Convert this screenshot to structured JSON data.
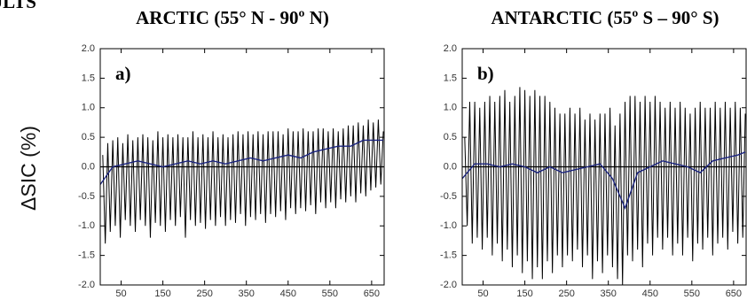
{
  "heading": "ULTS",
  "chart_data": [
    {
      "type": "line",
      "title": "ARCTIC (55° N - 90º N)",
      "panel_label": "a)",
      "ylabel": "ΔSIC (%)",
      "xlim": [
        0,
        680
      ],
      "ylim": [
        -2.0,
        2.0
      ],
      "xticks": [
        50,
        150,
        250,
        350,
        450,
        550,
        650
      ],
      "yticks": [
        {
          "value": 2.0,
          "label": "2.0"
        },
        1.5,
        {
          "value": 1.0,
          "label": "1.0"
        },
        0.5,
        {
          "value": 0.0,
          "label": "0.0"
        },
        -0.5,
        {
          "value": -1.0,
          "label": "-1.0"
        },
        -1.5,
        {
          "value": -2.0,
          "label": "-2.0"
        }
      ],
      "zero_line": true,
      "series": [
        {
          "color": "#000000",
          "x": [
            6,
            12,
            18,
            24,
            30,
            36,
            42,
            48,
            54,
            60,
            66,
            72,
            78,
            84,
            90,
            96,
            102,
            108,
            114,
            120,
            126,
            132,
            138,
            144,
            150,
            156,
            162,
            168,
            174,
            180,
            186,
            192,
            198,
            204,
            210,
            216,
            222,
            228,
            234,
            240,
            246,
            252,
            258,
            264,
            270,
            276,
            282,
            288,
            294,
            300,
            306,
            312,
            318,
            324,
            330,
            336,
            342,
            348,
            354,
            360,
            366,
            372,
            378,
            384,
            390,
            396,
            402,
            408,
            414,
            420,
            426,
            432,
            438,
            444,
            450,
            456,
            462,
            468,
            474,
            480,
            486,
            492,
            498,
            504,
            510,
            516,
            522,
            528,
            534,
            540,
            546,
            552,
            558,
            564,
            570,
            576,
            582,
            588,
            594,
            600,
            606,
            612,
            618,
            624,
            630,
            636,
            642,
            648,
            654,
            660,
            666,
            672,
            678
          ],
          "values": [
            0.2,
            -1.3,
            0.4,
            -1.1,
            0.45,
            -1.0,
            0.5,
            -1.2,
            0.4,
            -0.9,
            0.55,
            -1.0,
            0.45,
            -1.1,
            0.5,
            -0.9,
            0.55,
            -1.0,
            0.5,
            -1.2,
            0.45,
            -0.95,
            0.6,
            -1.0,
            0.5,
            -1.1,
            0.55,
            -0.9,
            0.5,
            -1.0,
            0.55,
            -0.85,
            0.5,
            -1.2,
            0.5,
            -0.9,
            0.6,
            -1.0,
            0.5,
            -0.95,
            0.55,
            -1.05,
            0.5,
            -0.9,
            0.6,
            -1.0,
            0.5,
            -0.85,
            0.55,
            -1.0,
            0.5,
            -0.9,
            0.55,
            -0.95,
            0.6,
            -0.8,
            0.55,
            -1.0,
            0.6,
            -0.85,
            0.55,
            -0.9,
            0.6,
            -0.8,
            0.55,
            -0.95,
            0.6,
            -0.8,
            0.6,
            -0.85,
            0.6,
            -0.75,
            0.55,
            -0.9,
            0.65,
            -0.7,
            0.6,
            -0.8,
            0.6,
            -0.7,
            0.65,
            -0.75,
            0.6,
            -0.65,
            0.6,
            -0.8,
            0.65,
            -0.6,
            0.65,
            -0.7,
            0.6,
            -0.6,
            0.65,
            -0.7,
            0.6,
            -0.55,
            0.65,
            -0.6,
            0.7,
            -0.5,
            0.7,
            -0.6,
            0.75,
            -0.45,
            0.7,
            -0.5,
            0.8,
            -0.4,
            0.75,
            -0.35,
            0.8,
            -0.3,
            0.6
          ]
        },
        {
          "color": "#1a237e",
          "x": [
            0,
            30,
            60,
            90,
            120,
            150,
            180,
            210,
            240,
            270,
            300,
            330,
            360,
            390,
            420,
            450,
            480,
            510,
            540,
            570,
            600,
            630,
            660,
            678
          ],
          "values": [
            -0.3,
            0.0,
            0.05,
            0.1,
            0.05,
            0.0,
            0.05,
            0.1,
            0.05,
            0.1,
            0.05,
            0.1,
            0.15,
            0.1,
            0.15,
            0.2,
            0.15,
            0.25,
            0.3,
            0.35,
            0.35,
            0.45,
            0.45,
            0.45
          ]
        }
      ]
    },
    {
      "type": "line",
      "title": "ANTARCTIC (55º S – 90° S)",
      "panel_label": "b)",
      "xlim": [
        0,
        680
      ],
      "ylim": [
        -2.0,
        2.0
      ],
      "xticks": [
        50,
        150,
        250,
        350,
        450,
        550,
        650
      ],
      "yticks": [
        {
          "value": 2.0,
          "label": "2.0"
        },
        1.5,
        {
          "value": 1.0,
          "label": "1.0"
        },
        0.5,
        {
          "value": 0.0,
          "label": "0.0"
        },
        -0.5,
        {
          "value": -1.0,
          "label": "-1.0"
        },
        -1.5,
        {
          "value": -2.0,
          "label": "-2.0"
        }
      ],
      "zero_line": true,
      "series": [
        {
          "color": "#000000",
          "x": [
            6,
            12,
            18,
            24,
            30,
            36,
            42,
            48,
            54,
            60,
            66,
            72,
            78,
            84,
            90,
            96,
            102,
            108,
            114,
            120,
            126,
            132,
            138,
            144,
            150,
            156,
            162,
            168,
            174,
            180,
            186,
            192,
            198,
            204,
            210,
            216,
            222,
            228,
            234,
            240,
            246,
            252,
            258,
            264,
            270,
            276,
            282,
            288,
            294,
            300,
            306,
            312,
            318,
            324,
            330,
            336,
            342,
            348,
            354,
            360,
            366,
            372,
            378,
            384,
            390,
            396,
            402,
            408,
            414,
            420,
            426,
            432,
            438,
            444,
            450,
            456,
            462,
            468,
            474,
            480,
            486,
            492,
            498,
            504,
            510,
            516,
            522,
            528,
            534,
            540,
            546,
            552,
            558,
            564,
            570,
            576,
            582,
            588,
            594,
            600,
            606,
            612,
            618,
            624,
            630,
            636,
            642,
            648,
            654,
            660,
            666,
            672,
            678
          ],
          "values": [
            0.5,
            -1.0,
            1.1,
            -1.3,
            1.1,
            -1.2,
            1.0,
            -1.4,
            1.1,
            -1.2,
            1.2,
            -1.5,
            1.1,
            -1.3,
            1.2,
            -1.6,
            1.3,
            -1.4,
            1.1,
            -1.7,
            1.2,
            -1.5,
            1.35,
            -1.8,
            1.3,
            -1.6,
            1.2,
            -1.9,
            1.3,
            -1.7,
            1.2,
            -1.9,
            1.2,
            -1.6,
            1.1,
            -1.8,
            1.0,
            -1.5,
            0.9,
            -1.7,
            0.9,
            -1.5,
            1.0,
            -1.6,
            0.9,
            -1.4,
            1.0,
            -1.7,
            0.8,
            -1.5,
            0.9,
            -1.9,
            0.8,
            -1.6,
            0.9,
            -1.8,
            0.9,
            -1.5,
            1.0,
            -1.7,
            0.7,
            -1.9,
            0.9,
            -2.0,
            1.1,
            -1.5,
            1.2,
            -1.6,
            1.2,
            -1.4,
            1.1,
            -1.7,
            1.2,
            -1.3,
            1.1,
            -1.5,
            1.2,
            -1.2,
            1.1,
            -1.4,
            1.0,
            -1.2,
            1.1,
            -1.5,
            1.0,
            -1.3,
            1.1,
            -1.5,
            1.0,
            -1.2,
            0.9,
            -1.6,
            1.0,
            -1.3,
            1.1,
            -1.4,
            1.0,
            -1.2,
            1.0,
            -1.5,
            1.1,
            -1.3,
            1.0,
            -1.2,
            1.1,
            -1.4,
            1.0,
            -1.1,
            1.1,
            -1.3,
            1.0,
            -1.2,
            0.9
          ]
        },
        {
          "color": "#1a237e",
          "x": [
            0,
            30,
            60,
            90,
            120,
            150,
            180,
            210,
            240,
            270,
            300,
            330,
            360,
            390,
            420,
            450,
            480,
            510,
            540,
            570,
            600,
            630,
            660,
            678
          ],
          "values": [
            -0.2,
            0.05,
            0.05,
            0.0,
            0.05,
            0.0,
            -0.1,
            0.0,
            -0.1,
            -0.05,
            0.0,
            0.05,
            -0.2,
            -0.7,
            -0.1,
            0.0,
            0.1,
            0.05,
            0.0,
            -0.1,
            0.1,
            0.15,
            0.2,
            0.25
          ]
        }
      ]
    }
  ]
}
